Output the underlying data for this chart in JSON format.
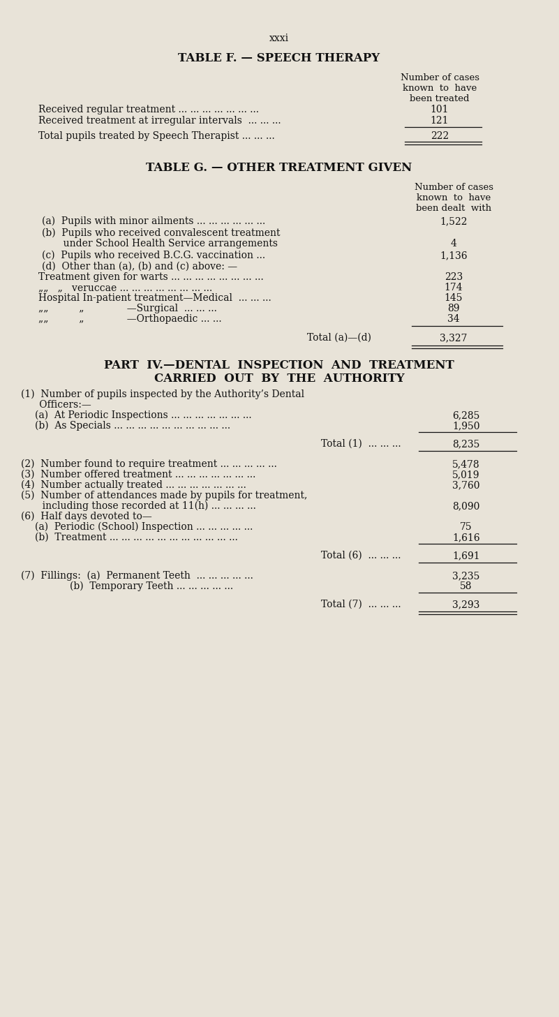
{
  "bg_color": "#e8e3d8",
  "page_number": "xxxi",
  "table_f_title": "TABLE F. — SPEECH THERAPY",
  "table_g_title": "TABLE G. — OTHER TREATMENT GIVEN",
  "part_iv_line1": "PART  IV.—DENTAL  INSPECTION  AND  TREATMENT",
  "part_iv_line2": "CARRIED  OUT  BY  THE  AUTHORITY",
  "fig_w": 8.01,
  "fig_h": 14.57,
  "dpi": 100
}
